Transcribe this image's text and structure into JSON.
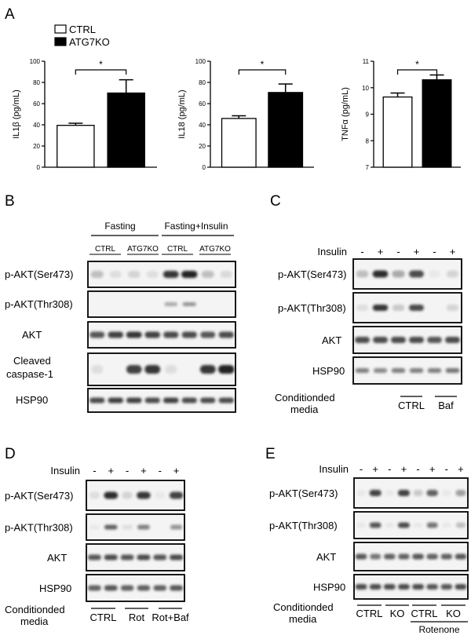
{
  "panels": {
    "A": "A",
    "B": "B",
    "C": "C",
    "D": "D",
    "E": "E"
  },
  "legend": {
    "ctrl": "CTRL",
    "ko": "ATG7KO"
  },
  "chart_data": [
    {
      "type": "bar",
      "categories": [
        "CTRL",
        "ATG7KO"
      ],
      "values": [
        39.5,
        70
      ],
      "errors": [
        2,
        12.5
      ],
      "ylabel": "IL1β (pg/mL)",
      "ylim": [
        0,
        100
      ],
      "yticks": [
        "0",
        "20",
        "40",
        "60",
        "80",
        "100"
      ],
      "significance": "*"
    },
    {
      "type": "bar",
      "categories": [
        "CTRL",
        "ATG7KO"
      ],
      "values": [
        46,
        70.5
      ],
      "errors": [
        2.5,
        8
      ],
      "ylabel": "IL18 (pg/mL)",
      "ylim": [
        0,
        100
      ],
      "yticks": [
        "0",
        "20",
        "40",
        "60",
        "80",
        "100"
      ],
      "significance": "*"
    },
    {
      "type": "bar",
      "categories": [
        "CTRL",
        "ATG7KO"
      ],
      "values": [
        9.65,
        10.3
      ],
      "errors": [
        0.15,
        0.18
      ],
      "ylabel": "TNFα (pg/mL)",
      "ylim": [
        7,
        11
      ],
      "yticks": [
        "7",
        "8",
        "9",
        "10",
        "11"
      ],
      "significance": "*"
    }
  ],
  "blotB": {
    "groups": [
      "Fasting",
      "Fasting+Insulin"
    ],
    "subgroups": [
      "CTRL",
      "ATG7KO",
      "CTRL",
      "ATG7KO"
    ],
    "rows": [
      "p-AKT(Ser473)",
      "p-AKT(Thr308)",
      "AKT",
      "Cleaved caspase-1",
      "HSP90"
    ],
    "caspase_line1": "Cleaved",
    "caspase_line2": "caspase-1"
  },
  "blotC": {
    "insulin_label": "Insulin",
    "signs": [
      "-",
      "+",
      "-",
      "+",
      "-",
      "+"
    ],
    "rows": [
      "p-AKT(Ser473)",
      "p-AKT(Thr308)",
      "AKT",
      "HSP90"
    ],
    "cm_line1": "Conditionded",
    "cm_line2": "media",
    "groups": [
      "CTRL",
      "Baf"
    ]
  },
  "blotD": {
    "insulin_label": "Insulin",
    "signs": [
      "-",
      "+",
      "-",
      "+",
      "-",
      "+"
    ],
    "rows": [
      "p-AKT(Ser473)",
      "p-AKT(Thr308)",
      "AKT",
      "HSP90"
    ],
    "cm_line1": "Conditionded",
    "cm_line2": "media",
    "groups": [
      "CTRL",
      "Rot",
      "Rot+Baf"
    ]
  },
  "blotE": {
    "insulin_label": "Insulin",
    "signs": [
      "-",
      "+",
      "-",
      "+",
      "-",
      "+",
      "-",
      "+"
    ],
    "rows": [
      "p-AKT(Ser473)",
      "p-AKT(Thr308)",
      "AKT",
      "HSP90"
    ],
    "cm_line1": "Conditionded",
    "cm_line2": "media",
    "groups": [
      "CTRL",
      "KO",
      "CTRL",
      "KO"
    ],
    "treatment": "Rotenone"
  },
  "colors": {
    "ctrl_fill": "#ffffff",
    "ko_fill": "#000000",
    "blot_bg": "#f4f4f4",
    "band": "#222222"
  }
}
